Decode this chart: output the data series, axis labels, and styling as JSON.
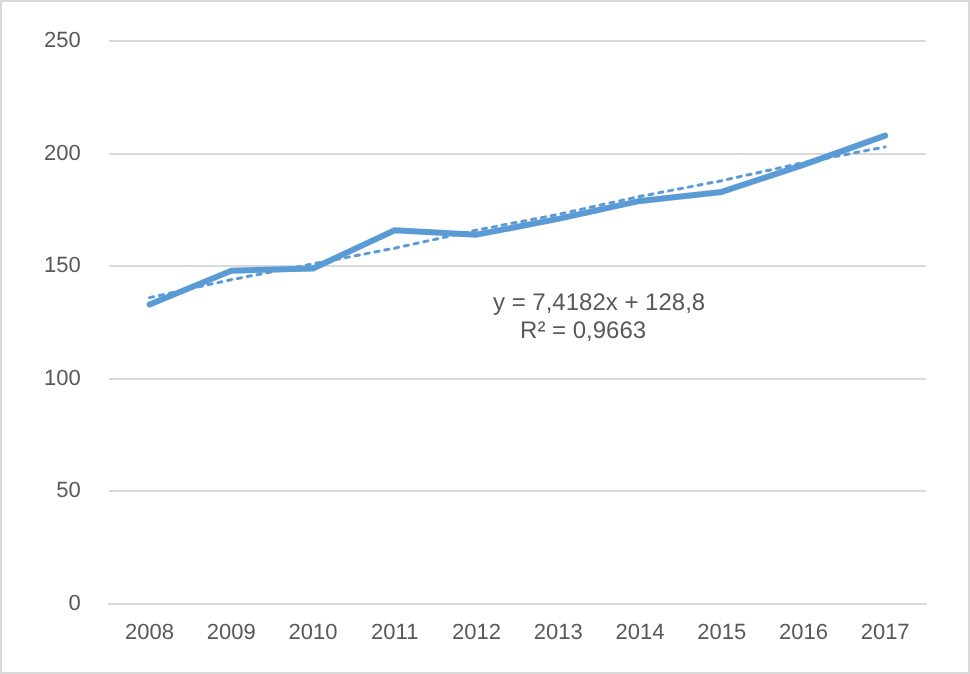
{
  "chart_data": {
    "type": "line",
    "categories": [
      "2008",
      "2009",
      "2010",
      "2011",
      "2012",
      "2013",
      "2014",
      "2015",
      "2016",
      "2017"
    ],
    "series": [
      {
        "color": "#5b9bd5",
        "line_style": "solid",
        "values": [
          133,
          148,
          149,
          166,
          164,
          171,
          179,
          183,
          195,
          208
        ]
      },
      {
        "color": "#5b9bd5",
        "line_style": "dotted",
        "values": [
          136,
          144,
          151,
          158,
          166,
          173,
          181,
          188,
          196,
          203
        ]
      }
    ],
    "ylim": [
      0,
      250
    ],
    "yticks": [
      0,
      50,
      100,
      150,
      200,
      250
    ],
    "grid": "y",
    "legend": false,
    "marker": "none",
    "annotations": [
      "y = 7,4182x + 128,8",
      "R² = 0,9663"
    ]
  }
}
